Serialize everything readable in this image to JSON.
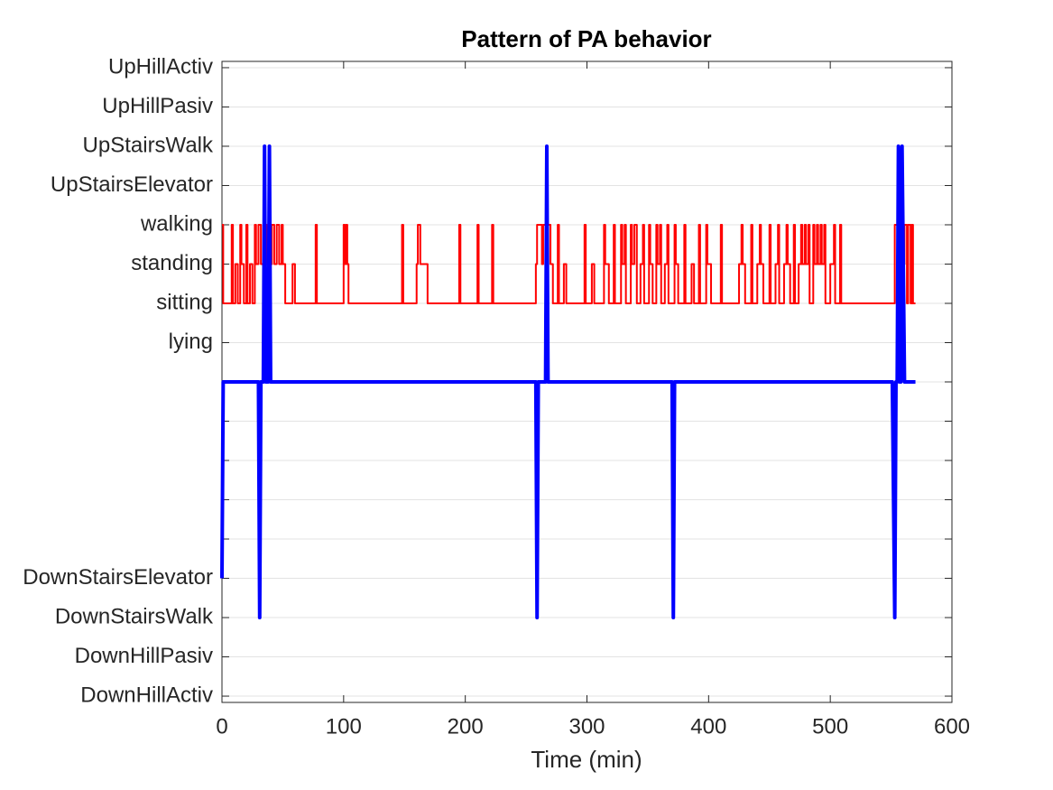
{
  "chart_data": {
    "type": "line",
    "title": "Pattern of PA behavior",
    "xlabel": "Time (min)",
    "xlim": [
      0,
      600
    ],
    "xticks": [
      0,
      100,
      200,
      300,
      400,
      500,
      600
    ],
    "ylim": [
      -8.16,
      8.16
    ],
    "yticks": [
      {
        "value": 8,
        "label": "UpHillActiv"
      },
      {
        "value": 7,
        "label": "UpHillPasiv"
      },
      {
        "value": 6,
        "label": "UpStairsWalk"
      },
      {
        "value": 5,
        "label": "UpStairsElevator"
      },
      {
        "value": 4,
        "label": "walking"
      },
      {
        "value": 3,
        "label": "standing"
      },
      {
        "value": 2,
        "label": "sitting"
      },
      {
        "value": 1,
        "label": "lying"
      },
      {
        "value": 0,
        "label": null
      },
      {
        "value": -1,
        "label": null
      },
      {
        "value": -2,
        "label": null
      },
      {
        "value": -3,
        "label": null
      },
      {
        "value": -4,
        "label": null
      },
      {
        "value": -5,
        "label": "DownStairsElevator"
      },
      {
        "value": -6,
        "label": "DownStairsWalk"
      },
      {
        "value": -7,
        "label": "DownHillPasiv"
      },
      {
        "value": -8,
        "label": "DownHillActiv"
      }
    ],
    "grid": true,
    "series": [
      {
        "color": "#ff0000",
        "width": 2,
        "steps": true,
        "x": [
          0,
          1,
          8,
          9,
          11,
          13,
          15,
          16,
          18,
          20,
          21,
          23,
          25,
          27,
          28,
          30,
          32,
          34,
          37,
          41,
          43,
          45,
          47,
          49,
          50,
          52,
          58,
          60,
          77,
          78,
          100,
          101,
          102,
          103,
          104,
          148,
          149,
          160,
          161,
          163,
          169,
          195,
          196,
          210,
          211,
          222,
          223,
          258,
          259,
          263,
          264,
          270,
          272,
          276,
          277,
          281,
          283,
          298,
          299,
          304,
          306,
          314,
          315,
          318,
          322,
          323,
          328,
          329,
          331,
          332,
          336,
          337,
          339,
          341,
          344,
          346,
          347,
          351,
          352,
          354,
          357,
          358,
          360,
          361,
          364,
          366,
          367,
          372,
          373,
          375,
          380,
          381,
          386,
          388,
          392,
          393,
          398,
          399,
          402,
          410,
          411,
          425,
          427,
          428,
          430,
          435,
          436,
          440,
          442,
          443,
          445,
          450,
          451,
          455,
          457,
          458,
          462,
          464,
          465,
          467,
          470,
          471,
          474,
          476,
          477,
          479,
          480,
          482,
          483,
          486,
          487,
          489,
          490,
          492,
          493,
          495,
          496,
          500,
          503,
          504,
          508,
          509,
          553,
          560,
          561,
          563,
          564,
          566,
          567,
          568,
          570
        ],
        "values": [
          4,
          2,
          4,
          2,
          3,
          2,
          4,
          3,
          2,
          4,
          2,
          3,
          2,
          4,
          3,
          4,
          3,
          4,
          3,
          4,
          3,
          4,
          3,
          4,
          3,
          2,
          3,
          2,
          4,
          2,
          4,
          3,
          4,
          3,
          2,
          4,
          2,
          3,
          4,
          3,
          2,
          4,
          2,
          4,
          2,
          4,
          2,
          3,
          4,
          3,
          4,
          3,
          2,
          4,
          2,
          3,
          2,
          4,
          2,
          3,
          2,
          4,
          3,
          2,
          4,
          2,
          4,
          3,
          4,
          2,
          4,
          3,
          4,
          2,
          3,
          4,
          2,
          4,
          3,
          2,
          4,
          3,
          4,
          2,
          3,
          4,
          2,
          4,
          3,
          2,
          4,
          2,
          3,
          2,
          4,
          2,
          4,
          3,
          2,
          4,
          2,
          3,
          4,
          3,
          2,
          4,
          2,
          3,
          4,
          3,
          2,
          4,
          2,
          3,
          4,
          2,
          3,
          4,
          3,
          2,
          4,
          2,
          3,
          4,
          3,
          4,
          3,
          4,
          2,
          4,
          3,
          4,
          3,
          4,
          3,
          4,
          2,
          3,
          4,
          2,
          4,
          2,
          4,
          3,
          4,
          2,
          4,
          2,
          4,
          2,
          2
        ]
      },
      {
        "color": "#0000ff",
        "width": 4,
        "x": [
          0,
          1,
          30,
          31,
          32,
          34,
          35,
          36,
          38,
          39,
          40,
          258,
          259,
          260,
          266,
          267,
          268,
          370,
          371,
          372,
          551,
          553,
          554,
          555,
          556,
          557,
          558,
          559,
          561,
          570
        ],
        "values": [
          -5,
          0,
          0,
          -6,
          0,
          0,
          6,
          0,
          0,
          6,
          0,
          0,
          -6,
          0,
          0,
          6,
          0,
          0,
          -6,
          0,
          0,
          -6,
          0,
          0,
          6,
          0,
          0,
          6,
          0,
          0
        ]
      }
    ]
  }
}
